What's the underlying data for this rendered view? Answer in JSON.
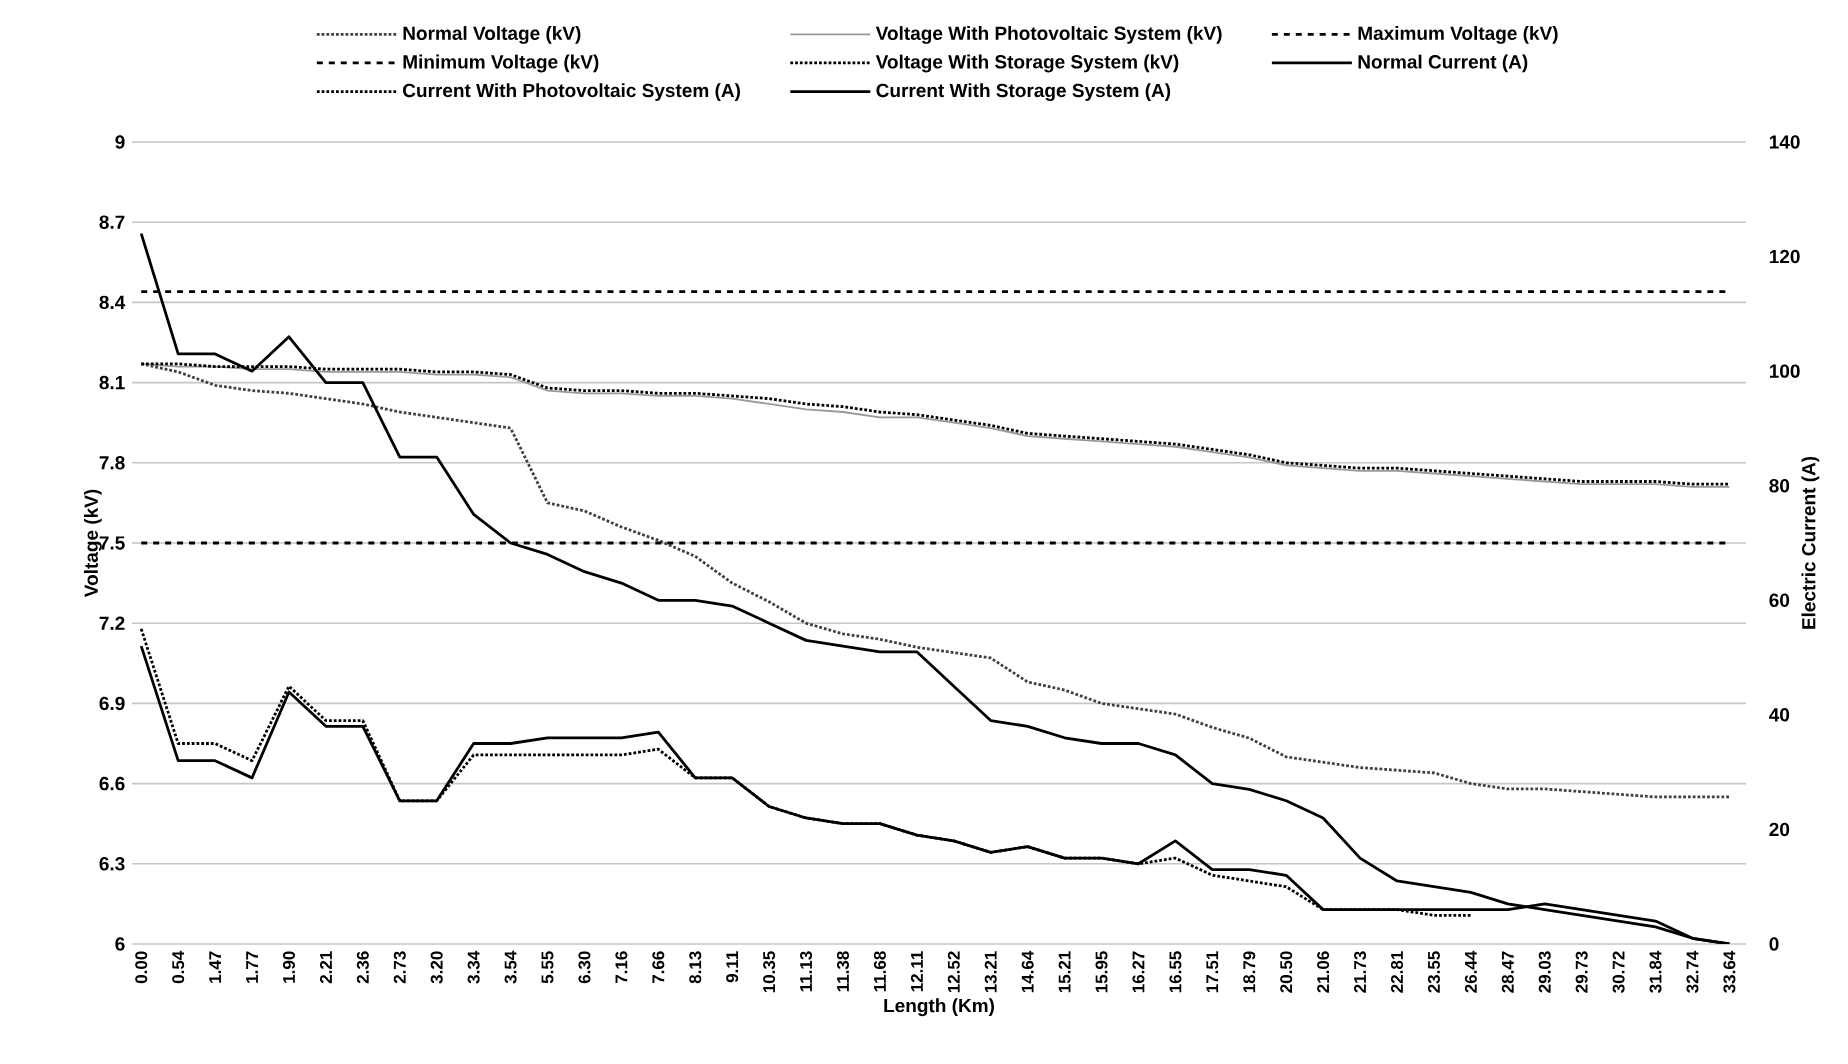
{
  "chart_data": {
    "type": "line",
    "xlabel": "Length (Km)",
    "ylabel": "Voltage (kV)",
    "y2label": "Electric Current (A)",
    "categories": [
      "0.00",
      "0.54",
      "1.47",
      "1.77",
      "1.90",
      "2.21",
      "2.36",
      "2.73",
      "3.20",
      "3.34",
      "3.54",
      "5.55",
      "6.30",
      "7.16",
      "7.66",
      "8.13",
      "9.11",
      "10.35",
      "11.13",
      "11.38",
      "11.68",
      "12.11",
      "12.52",
      "13.21",
      "14.64",
      "15.21",
      "15.95",
      "16.27",
      "16.55",
      "17.51",
      "18.79",
      "20.50",
      "21.06",
      "21.73",
      "22.81",
      "23.55",
      "26.44",
      "28.47",
      "29.03",
      "29.73",
      "30.72",
      "31.84",
      "32.74",
      "33.64"
    ],
    "ylim": [
      6,
      9
    ],
    "yticks": [
      6,
      6.3,
      6.6,
      6.9,
      7.2,
      7.5,
      7.8,
      8.1,
      8.4,
      8.7,
      9
    ],
    "y2lim": [
      0,
      140
    ],
    "y2ticks": [
      0,
      20,
      40,
      60,
      80,
      100,
      120,
      140
    ],
    "grid": "y",
    "legend": "top",
    "marker": "none",
    "series": [
      {
        "name": "Normal Voltage (kV)",
        "color": "#404040",
        "line_style": "dotted",
        "values": [
          8.17,
          8.14,
          8.09,
          8.07,
          8.06,
          8.04,
          8.02,
          7.99,
          7.97,
          7.95,
          7.93,
          7.65,
          7.62,
          7.56,
          7.51,
          7.45,
          7.35,
          7.28,
          7.2,
          7.16,
          7.14,
          7.11,
          7.09,
          7.07,
          6.98,
          6.95,
          6.9,
          6.88,
          6.86,
          6.81,
          6.77,
          6.7,
          6.68,
          6.66,
          6.65,
          6.64,
          6.6,
          6.58,
          6.58,
          6.57,
          6.56,
          6.55,
          6.55,
          6.55
        ]
      },
      {
        "name": "Voltage With Photovoltaic System (kV)",
        "color": "#999999",
        "line_style": "solid",
        "values": [
          8.17,
          8.16,
          8.16,
          8.15,
          8.15,
          8.14,
          8.14,
          8.14,
          8.13,
          8.13,
          8.12,
          8.07,
          8.06,
          8.06,
          8.05,
          8.05,
          8.04,
          8.02,
          8.0,
          7.99,
          7.97,
          7.97,
          7.95,
          7.93,
          7.9,
          7.89,
          7.88,
          7.87,
          7.86,
          7.84,
          7.82,
          7.79,
          7.78,
          7.77,
          7.77,
          7.76,
          7.75,
          7.74,
          7.73,
          7.72,
          7.72,
          7.72,
          7.71,
          7.71
        ]
      },
      {
        "name": "Maximum Voltage (kV)",
        "color": "#000000",
        "line_style": "dashed",
        "values": [
          8.44,
          8.44,
          8.44,
          8.44,
          8.44,
          8.44,
          8.44,
          8.44,
          8.44,
          8.44,
          8.44,
          8.44,
          8.44,
          8.44,
          8.44,
          8.44,
          8.44,
          8.44,
          8.44,
          8.44,
          8.44,
          8.44,
          8.44,
          8.44,
          8.44,
          8.44,
          8.44,
          8.44,
          8.44,
          8.44,
          8.44,
          8.44,
          8.44,
          8.44,
          8.44,
          8.44,
          8.44,
          8.44,
          8.44,
          8.44,
          8.44,
          8.44,
          8.44,
          8.44
        ]
      },
      {
        "name": "Minimum Voltage (kV)",
        "color": "#000000",
        "line_style": "dashed",
        "values": [
          7.5,
          7.5,
          7.5,
          7.5,
          7.5,
          7.5,
          7.5,
          7.5,
          7.5,
          7.5,
          7.5,
          7.5,
          7.5,
          7.5,
          7.5,
          7.5,
          7.5,
          7.5,
          7.5,
          7.5,
          7.5,
          7.5,
          7.5,
          7.5,
          7.5,
          7.5,
          7.5,
          7.5,
          7.5,
          7.5,
          7.5,
          7.5,
          7.5,
          7.5,
          7.5,
          7.5,
          7.5,
          7.5,
          7.5,
          7.5,
          7.5,
          7.5,
          7.5,
          7.5
        ]
      },
      {
        "name": "Voltage With Storage System (kV)",
        "color": "#000000",
        "line_style": "dotted",
        "values": [
          8.17,
          8.17,
          8.16,
          8.16,
          8.16,
          8.15,
          8.15,
          8.15,
          8.14,
          8.14,
          8.13,
          8.08,
          8.07,
          8.07,
          8.06,
          8.06,
          8.05,
          8.04,
          8.02,
          8.01,
          7.99,
          7.98,
          7.96,
          7.94,
          7.91,
          7.9,
          7.89,
          7.88,
          7.87,
          7.85,
          7.83,
          7.8,
          7.79,
          7.78,
          7.78,
          7.77,
          7.76,
          7.75,
          7.74,
          7.73,
          7.73,
          7.73,
          7.72,
          7.72
        ]
      },
      {
        "name": "Normal Current (A)",
        "color": "#000000",
        "line_style": "solid",
        "axis": "y2",
        "values": [
          124,
          103,
          103,
          100,
          106,
          98,
          98,
          85,
          85,
          75,
          70,
          68,
          65,
          63,
          60,
          60,
          59,
          56,
          53,
          52,
          51,
          51,
          45,
          39,
          38,
          36,
          35,
          35,
          33,
          28,
          27,
          25,
          22,
          15,
          11,
          10,
          9,
          7,
          6,
          5,
          4,
          3,
          1,
          0
        ]
      },
      {
        "name": "Current With Photovoltaic System (A)",
        "color": "#000000",
        "line_style": "dotted",
        "axis": "y2",
        "values": [
          55,
          35,
          35,
          32,
          45,
          39,
          39,
          25,
          25,
          33,
          33,
          33,
          33,
          33,
          34,
          29,
          29,
          24,
          22,
          21,
          21,
          19,
          18,
          16,
          17,
          15,
          15,
          14,
          15,
          12,
          11,
          10,
          6,
          6,
          6,
          5,
          5,
          null,
          null,
          null,
          null,
          null,
          null,
          null
        ]
      },
      {
        "name": "Current With Storage System (A)",
        "color": "#000000",
        "line_style": "solid",
        "axis": "y2",
        "values": [
          52,
          32,
          32,
          29,
          44,
          38,
          38,
          25,
          25,
          35,
          35,
          36,
          36,
          36,
          37,
          29,
          29,
          24,
          22,
          21,
          21,
          19,
          18,
          16,
          17,
          15,
          15,
          14,
          18,
          13,
          13,
          12,
          6,
          6,
          6,
          6,
          6,
          6,
          7,
          6,
          5,
          4,
          1,
          0
        ]
      }
    ]
  }
}
